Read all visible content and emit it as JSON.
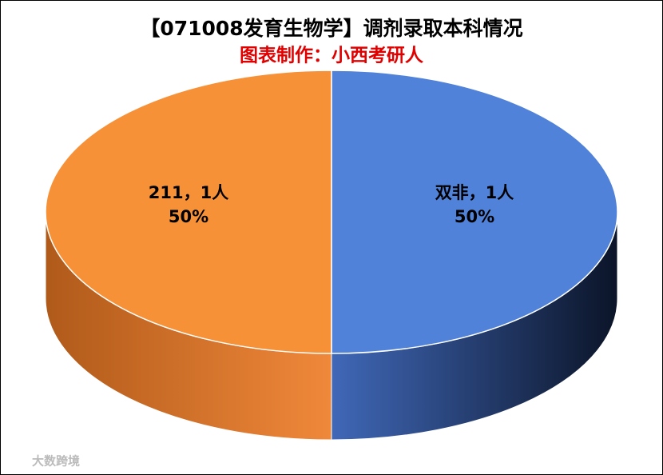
{
  "chart_data": {
    "type": "pie3d",
    "title": "【071008发育生物学】调剂录取本科情况",
    "subtitle": "图表制作：小西考研人",
    "categories": [
      "双非",
      "211"
    ],
    "values": [
      1,
      1
    ],
    "value_labels": [
      "双非，1人",
      "211，1人"
    ],
    "percentages": [
      50,
      50
    ],
    "percentage_labels": [
      "50%",
      "50%"
    ],
    "colors": [
      "#5082da",
      "#f79138"
    ],
    "side_colors": [
      [
        "#4068b8",
        "#0b1428"
      ],
      [
        "#b05a1a",
        "#f0883a"
      ]
    ],
    "watermark": "大数跨境"
  }
}
